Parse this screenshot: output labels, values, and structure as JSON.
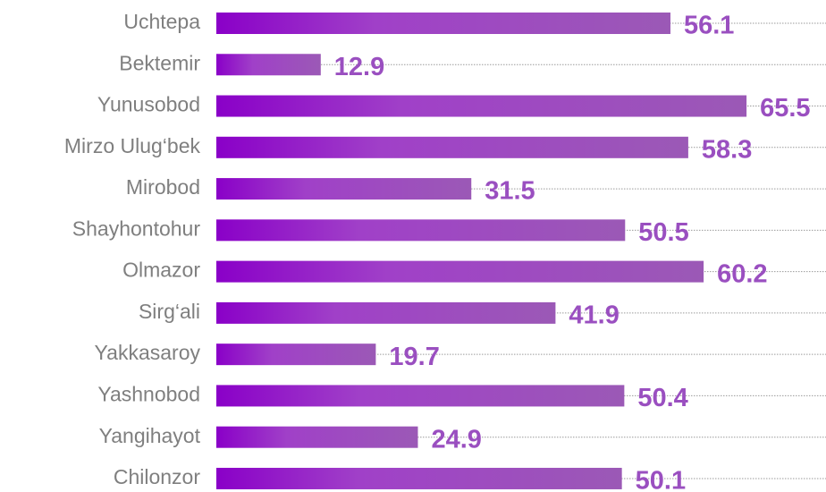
{
  "chart_data": {
    "type": "bar",
    "orientation": "horizontal",
    "categories": [
      "Uchtepa",
      "Bektemir",
      "Yunusobod",
      "Mirzo Ulug‘bek",
      "Mirobod",
      "Shayhontohur",
      "Olmazor",
      "Sirg‘ali",
      "Yakkasaroy",
      "Yashnobod",
      "Yangihayot",
      "Chilonzor"
    ],
    "values": [
      56.1,
      12.9,
      65.5,
      58.3,
      31.5,
      50.5,
      60.2,
      41.9,
      19.7,
      50.4,
      24.9,
      50.1
    ],
    "color": "#9b59b6"
  }
}
